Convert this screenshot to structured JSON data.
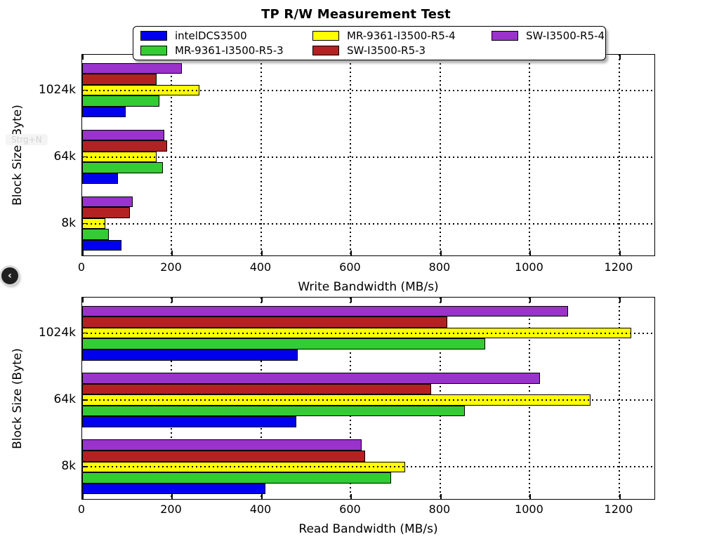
{
  "title": "TP R/W Measurement Test",
  "legend": {
    "entries": [
      {
        "label": "intelDCS3500",
        "color": "#0000EE"
      },
      {
        "label": "MR-9361-I3500-R5-3",
        "color": "#33CC33"
      },
      {
        "label": "MR-9361-I3500-R5-4",
        "color": "#FFFF00"
      },
      {
        "label": "SW-I3500-R5-3",
        "color": "#B22222"
      },
      {
        "label": "SW-I3500-R5-4",
        "color": "#9933CC"
      }
    ]
  },
  "overlay": {
    "back_button_icon": "‹",
    "watermark_text": "Strg+N"
  },
  "chart_data": [
    {
      "type": "bar",
      "orientation": "horizontal",
      "xlabel": "Write Bandwidth (MB/s)",
      "ylabel": "Block Size (Byte)",
      "categories": [
        "1024k",
        "64k",
        "8k"
      ],
      "xticks": [
        0,
        200,
        400,
        600,
        800,
        1000,
        1200
      ],
      "xlim": [
        0,
        1277
      ],
      "grid": true,
      "legend_position": "top-center",
      "series": [
        {
          "name": "SW-I3500-R5-4",
          "color": "#9933CC",
          "values": [
            223,
            183,
            113
          ]
        },
        {
          "name": "SW-I3500-R5-3",
          "color": "#B22222",
          "values": [
            166,
            190,
            106
          ]
        },
        {
          "name": "MR-9361-I3500-R5-4",
          "color": "#FFFF00",
          "values": [
            262,
            166,
            52
          ]
        },
        {
          "name": "MR-9361-I3500-R5-3",
          "color": "#33CC33",
          "values": [
            173,
            180,
            59
          ]
        },
        {
          "name": "intelDCS3500",
          "color": "#0000EE",
          "values": [
            97,
            80,
            88
          ]
        }
      ]
    },
    {
      "type": "bar",
      "orientation": "horizontal",
      "xlabel": "Read Bandwidth (MB/s)",
      "ylabel": "Block Size (Byte)",
      "categories": [
        "1024k",
        "64k",
        "8k"
      ],
      "xticks": [
        0,
        200,
        400,
        600,
        800,
        1000,
        1200
      ],
      "xlim": [
        0,
        1277
      ],
      "grid": true,
      "series": [
        {
          "name": "SW-I3500-R5-4",
          "color": "#9933CC",
          "values": [
            1085,
            1023,
            625
          ]
        },
        {
          "name": "SW-I3500-R5-3",
          "color": "#B22222",
          "values": [
            816,
            780,
            632
          ]
        },
        {
          "name": "MR-9361-I3500-R5-4",
          "color": "#FFFF00",
          "values": [
            1227,
            1136,
            722
          ]
        },
        {
          "name": "MR-9361-I3500-R5-3",
          "color": "#33CC33",
          "values": [
            900,
            855,
            690
          ]
        },
        {
          "name": "intelDCS3500",
          "color": "#0000EE",
          "values": [
            482,
            478,
            409
          ]
        }
      ]
    }
  ]
}
